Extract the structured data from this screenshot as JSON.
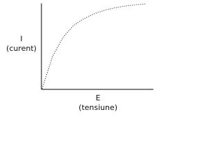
{
  "chart_data": {
    "type": "line",
    "ylabel": {
      "symbol": "I",
      "name": "(curent)"
    },
    "xlabel": {
      "symbol": "E",
      "name": "(tensiune)"
    },
    "x": [
      0,
      1,
      2,
      3,
      4,
      5,
      6,
      7,
      8,
      9,
      10
    ],
    "values": [
      0,
      3.8,
      6,
      7.4,
      8.2,
      8.8,
      9.2,
      9.5,
      9.7,
      9.85,
      9.95
    ],
    "color": "#333333",
    "xlim": [
      0,
      10
    ],
    "ylim": [
      0,
      10
    ],
    "grid": false
  }
}
